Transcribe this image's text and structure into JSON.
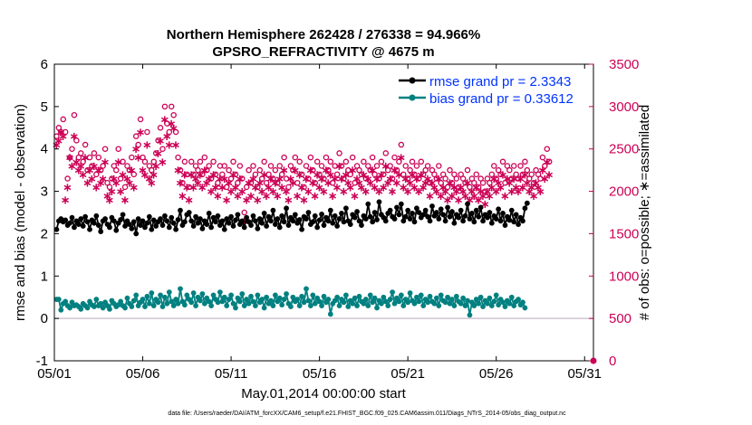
{
  "colors": {
    "rmse": "#000000",
    "bias": "#008080",
    "obs": "#cc0055",
    "legend_text": "#0033ff",
    "zero_line": "#c8b8c8"
  },
  "chart_data": {
    "type": "line",
    "title_line1": "Northern Hemisphere 262428 / 276338 = 94.966%",
    "title_line2": "GPSRO_REFRACTIVITY @ 4675 m",
    "xlabel": "May.01,2014 00:00:00 start",
    "ylabel_left": "rmse and bias (model - observation)",
    "ylabel_right": "# of obs: o=possible; ∗=assimilated",
    "footnote": "data file: /Users/raeder/DAI/ATM_forcXX/CAM6_setup/f.e21.FHIST_BGC.f09_025.CAM6assim.011/Diags_NTrS_2014-05/obs_diag_output.nc",
    "x_ticks": [
      "05/01",
      "05/06",
      "05/11",
      "05/16",
      "05/21",
      "05/26",
      "05/31"
    ],
    "x_tick_days": [
      1,
      6,
      11,
      16,
      21,
      26,
      31
    ],
    "xlim": [
      1,
      31.5
    ],
    "ylim_left": [
      -1,
      6
    ],
    "left_ticks": [
      "-1",
      "0",
      "1",
      "2",
      "3",
      "4",
      "5",
      "6"
    ],
    "ylim_right": [
      0,
      3500
    ],
    "right_ticks": [
      "0",
      "500",
      "1000",
      "1500",
      "2000",
      "2500",
      "3000",
      "3500"
    ],
    "legend": {
      "placement": "top-right",
      "rmse_label": "rmse grand pr = 2.3343",
      "bias_label": "bias grand pr = 0.33612"
    },
    "rmse": [
      2.1,
      2.3,
      2.35,
      2.28,
      2.32,
      2.2,
      2.25,
      2.38,
      2.15,
      2.3,
      2.22,
      2.35,
      2.18,
      2.4,
      2.28,
      2.1,
      2.32,
      2.25,
      2.42,
      2.2,
      2.05,
      2.3,
      2.35,
      2.22,
      2.15,
      2.38,
      2.3,
      2.08,
      2.25,
      2.33,
      2.45,
      2.18,
      2.3,
      2.22,
      2.12,
      2.28,
      2.0,
      2.35,
      2.2,
      2.3,
      2.15,
      2.25,
      2.4,
      2.1,
      2.32,
      2.18,
      2.28,
      2.35,
      2.2,
      2.42,
      2.3,
      2.15,
      2.38,
      2.25,
      2.1,
      2.33,
      2.55,
      2.2,
      2.28,
      2.45,
      2.5,
      2.3,
      2.18,
      2.4,
      2.25,
      2.35,
      2.12,
      2.3,
      2.22,
      2.48,
      2.15,
      2.38,
      2.28,
      2.42,
      2.2,
      2.3,
      2.1,
      2.35,
      2.25,
      2.4,
      2.18,
      2.32,
      2.45,
      2.22,
      2.3,
      2.15,
      2.38,
      2.28,
      2.2,
      2.42,
      2.3,
      2.12,
      2.35,
      2.25,
      2.48,
      2.18,
      2.4,
      2.3,
      2.55,
      2.22,
      2.35,
      2.15,
      2.42,
      2.28,
      2.6,
      2.2,
      2.38,
      2.3,
      2.45,
      2.25,
      2.33,
      2.1,
      2.4,
      2.35,
      2.5,
      2.22,
      2.28,
      2.42,
      2.15,
      2.32,
      2.46,
      2.2,
      2.38,
      2.3,
      2.55,
      2.25,
      2.42,
      2.18,
      2.35,
      2.48,
      2.28,
      2.6,
      2.3,
      2.22,
      2.45,
      2.38,
      2.52,
      2.3,
      2.2,
      2.42,
      2.35,
      2.7,
      2.4,
      2.28,
      2.5,
      2.33,
      2.75,
      2.45,
      2.38,
      2.3,
      2.48,
      2.55,
      2.4,
      2.35,
      2.62,
      2.45,
      2.7,
      2.3,
      2.4,
      2.55,
      2.35,
      2.48,
      2.28,
      2.6,
      2.5,
      2.38,
      2.45,
      2.55,
      2.4,
      2.3,
      2.65,
      2.42,
      2.5,
      2.35,
      2.58,
      2.45,
      2.3,
      2.62,
      2.4,
      2.52,
      2.25,
      2.45,
      2.38,
      2.55,
      2.3,
      2.42,
      2.7,
      2.35,
      2.48,
      2.28,
      2.55,
      2.4,
      2.62,
      2.3,
      2.45,
      2.38,
      2.5,
      2.25,
      2.42,
      2.35,
      2.58,
      2.3,
      2.48,
      2.2,
      2.4,
      2.32,
      2.55,
      2.28,
      2.45,
      2.22,
      2.38,
      2.3,
      2.6,
      2.72
    ],
    "bias": [
      0.45,
      0.45,
      0.2,
      0.35,
      0.4,
      0.3,
      0.25,
      0.38,
      0.3,
      0.32,
      0.28,
      0.22,
      0.35,
      0.3,
      0.25,
      0.4,
      0.32,
      0.28,
      0.45,
      0.3,
      0.35,
      0.25,
      0.38,
      0.3,
      0.22,
      0.42,
      0.35,
      0.28,
      0.32,
      0.4,
      0.3,
      0.25,
      0.48,
      0.35,
      0.28,
      0.42,
      0.55,
      0.3,
      0.38,
      0.45,
      0.28,
      0.52,
      0.35,
      0.6,
      0.3,
      0.45,
      0.38,
      0.55,
      0.28,
      0.5,
      0.35,
      0.62,
      0.4,
      0.3,
      0.45,
      0.35,
      0.7,
      0.4,
      0.32,
      0.55,
      0.45,
      0.38,
      0.6,
      0.3,
      0.5,
      0.42,
      0.58,
      0.35,
      0.48,
      0.4,
      0.3,
      0.55,
      0.45,
      0.38,
      0.62,
      0.4,
      0.5,
      0.3,
      0.45,
      0.55,
      0.35,
      0.25,
      0.48,
      0.4,
      0.58,
      0.3,
      0.45,
      0.35,
      0.52,
      0.4,
      0.3,
      0.55,
      0.38,
      0.45,
      0.25,
      0.5,
      0.35,
      0.42,
      0.3,
      0.55,
      0.4,
      0.48,
      0.32,
      0.45,
      0.58,
      0.35,
      0.28,
      0.5,
      0.4,
      0.45,
      0.3,
      0.52,
      0.38,
      0.7,
      0.42,
      0.3,
      0.55,
      0.35,
      0.48,
      0.4,
      0.3,
      0.52,
      0.38,
      0.45,
      0.1,
      0.35,
      0.42,
      0.5,
      0.3,
      0.45,
      0.38,
      0.55,
      0.28,
      0.42,
      0.35,
      0.48,
      0.3,
      0.52,
      0.4,
      0.35,
      0.45,
      0.3,
      0.55,
      0.38,
      0.48,
      0.25,
      0.42,
      0.35,
      0.5,
      0.4,
      0.3,
      0.45,
      0.62,
      0.35,
      0.48,
      0.4,
      0.55,
      0.3,
      0.45,
      0.38,
      0.6,
      0.42,
      0.35,
      0.5,
      0.4,
      0.55,
      0.3,
      0.45,
      0.38,
      0.52,
      0.4,
      0.35,
      0.48,
      0.3,
      0.55,
      0.42,
      0.38,
      0.5,
      0.35,
      0.45,
      0.3,
      0.52,
      0.4,
      0.35,
      0.48,
      0.3,
      0.42,
      0.08,
      0.38,
      0.3,
      0.45,
      0.35,
      0.5,
      0.28,
      0.42,
      0.35,
      0.48,
      0.3,
      0.4,
      0.55,
      0.32,
      0.45,
      0.38,
      0.28,
      0.42,
      0.35,
      0.5,
      0.3,
      0.4,
      0.45,
      0.32,
      0.38,
      0.25
    ],
    "possible": [
      2650,
      2750,
      2700,
      2850,
      2700,
      2150,
      2400,
      2500,
      2900,
      2600,
      2400,
      2450,
      2350,
      2550,
      2250,
      2400,
      2300,
      2450,
      2200,
      2400,
      2250,
      2300,
      2500,
      2100,
      2050,
      2150,
      2300,
      2250,
      2500,
      2150,
      2350,
      2050,
      2300,
      2250,
      2400,
      2200,
      2650,
      2550,
      2850,
      2400,
      2350,
      2700,
      2300,
      2250,
      2350,
      2450,
      2600,
      2750,
      2500,
      3000,
      2800,
      2700,
      3000,
      2900,
      2700,
      2400,
      2250,
      2100,
      2350,
      2200,
      2050,
      2350,
      2200,
      2300,
      2250,
      2350,
      2200,
      2400,
      2250,
      2300,
      2150,
      2350,
      2200,
      2100,
      2300,
      2200,
      2300,
      2050,
      2250,
      2150,
      2350,
      2200,
      2100,
      2300,
      2150,
      1750,
      2050,
      2250,
      2100,
      2300,
      2200,
      2050,
      2250,
      2150,
      2350,
      2100,
      2200,
      2300,
      2150,
      2250,
      2100,
      2300,
      2200,
      2400,
      2150,
      2050,
      2300,
      2250,
      2400,
      2100,
      2350,
      2200,
      2050,
      2300,
      2150,
      2400,
      2250,
      2100,
      2350,
      2200,
      2300,
      2150,
      2400,
      2250,
      2350,
      2100,
      2300,
      2200,
      2450,
      2300,
      2150,
      2350,
      2250,
      2200,
      2400,
      2100,
      2300,
      2250,
      2200,
      2350,
      2150,
      2300,
      2250,
      2400,
      2200,
      2300,
      2150,
      2350,
      2200,
      2450,
      2250,
      2300,
      2150,
      2400,
      2250,
      2350,
      2550,
      2200,
      2300,
      2150,
      2250,
      2350,
      2200,
      2300,
      2150,
      2350,
      2200,
      2250,
      2300,
      2100,
      2250,
      2200,
      2150,
      2300,
      2100,
      2200,
      2150,
      2050,
      2250,
      2100,
      2200,
      2150,
      2050,
      2200,
      2150,
      2100,
      2250,
      2050,
      2150,
      2100,
      2200,
      2050,
      2150,
      2100,
      2000,
      2150,
      2100,
      2200,
      2300,
      2150,
      2250,
      2200,
      2350,
      2100,
      2300,
      2250,
      2150,
      2300,
      2200,
      2150,
      2300,
      2200,
      2350,
      2250,
      2150,
      2200,
      2100,
      2250,
      2200,
      2150,
      2400,
      2300,
      2500,
      2350
    ],
    "assimilated": [
      2550,
      2600,
      2700,
      2650,
      1900,
      2050,
      2400,
      2300,
      2650,
      2350,
      2250,
      2300,
      2200,
      2400,
      2100,
      2250,
      2150,
      2300,
      2050,
      2250,
      2100,
      2150,
      2350,
      1950,
      1900,
      2000,
      2150,
      2100,
      2350,
      2000,
      2200,
      1900,
      2150,
      2100,
      2250,
      2050,
      2500,
      2400,
      2700,
      2250,
      2200,
      2550,
      2150,
      2100,
      2200,
      2300,
      2450,
      2600,
      2350,
      2850,
      2650,
      2550,
      2800,
      2750,
      2550,
      2250,
      2100,
      1950,
      2200,
      2050,
      1900,
      2200,
      2050,
      2150,
      2100,
      2200,
      2050,
      2250,
      2100,
      2150,
      2000,
      2200,
      2050,
      1950,
      2150,
      2050,
      2150,
      1900,
      2100,
      2000,
      2200,
      2050,
      1950,
      2150,
      2000,
      1650,
      1900,
      2100,
      1950,
      2150,
      2050,
      1900,
      2100,
      2000,
      2200,
      1950,
      2050,
      2150,
      2000,
      2100,
      1950,
      2150,
      2050,
      2250,
      2000,
      1900,
      2150,
      2100,
      2250,
      1950,
      2200,
      2050,
      1900,
      2150,
      2000,
      2250,
      2100,
      1950,
      2200,
      2050,
      2150,
      2000,
      2250,
      2100,
      2200,
      1950,
      2150,
      2050,
      2300,
      2150,
      2000,
      2200,
      2100,
      2050,
      2250,
      1950,
      2150,
      2100,
      2050,
      2200,
      2000,
      2150,
      2100,
      2250,
      2050,
      2150,
      2000,
      2200,
      2050,
      2300,
      2100,
      2150,
      2000,
      2250,
      2100,
      2200,
      2400,
      2050,
      2150,
      2000,
      2100,
      2200,
      2050,
      2150,
      2000,
      2200,
      2050,
      2100,
      2150,
      1950,
      2100,
      2050,
      2000,
      2150,
      1950,
      2050,
      2000,
      1900,
      2100,
      1950,
      2050,
      2000,
      1900,
      2050,
      2000,
      1950,
      2100,
      1900,
      2000,
      1950,
      2050,
      1900,
      2000,
      1950,
      1850,
      2000,
      1950,
      2050,
      2150,
      2000,
      2100,
      2050,
      2200,
      1950,
      2150,
      2100,
      2000,
      2150,
      2050,
      2000,
      2150,
      2050,
      2200,
      2100,
      2000,
      2050,
      1950,
      2100,
      2050,
      2000,
      2250,
      2150,
      2350,
      2200
    ]
  }
}
